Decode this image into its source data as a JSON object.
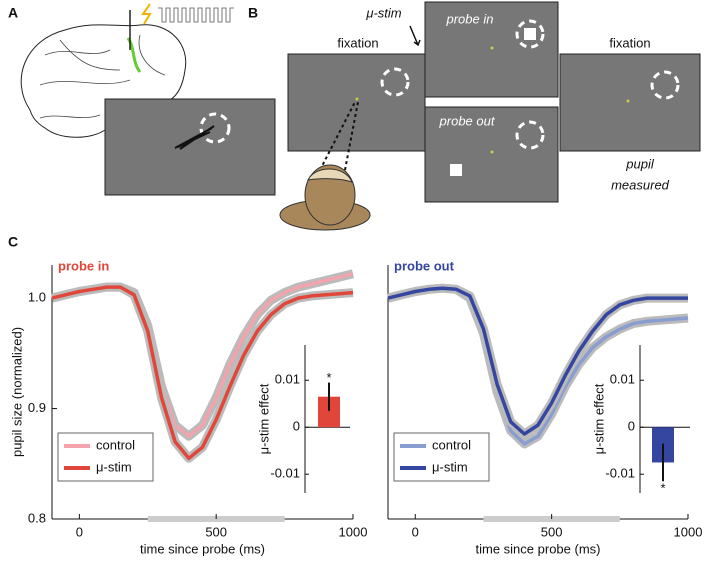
{
  "panels": {
    "a": "A",
    "b": "B",
    "c": "C"
  },
  "diagram": {
    "stim_label": "μ-stim",
    "probe_in": "probe in",
    "probe_out": "probe out",
    "fixation_left": "fixation",
    "fixation_right": "fixation",
    "pupil_measured": [
      "pupil",
      "measured"
    ]
  },
  "chart_data": [
    {
      "type": "line",
      "title": "probe in",
      "xlabel": "time since probe (ms)",
      "ylabel": "pupil size (normalized)",
      "x": [
        -100,
        -50,
        0,
        50,
        100,
        150,
        200,
        250,
        300,
        350,
        400,
        450,
        500,
        550,
        600,
        650,
        700,
        750,
        800,
        850,
        900,
        950,
        1000
      ],
      "series": [
        {
          "name": "control",
          "color": "#f2a3ab",
          "values": [
            1.0,
            1.003,
            1.006,
            1.008,
            1.01,
            1.01,
            1.005,
            0.975,
            0.92,
            0.885,
            0.875,
            0.885,
            0.91,
            0.94,
            0.965,
            0.985,
            0.998,
            1.005,
            1.01,
            1.013,
            1.016,
            1.019,
            1.022
          ]
        },
        {
          "name": "μ-stim",
          "color": "#e0473a",
          "values": [
            1.0,
            1.003,
            1.006,
            1.008,
            1.01,
            1.01,
            1.003,
            0.97,
            0.91,
            0.87,
            0.855,
            0.865,
            0.89,
            0.92,
            0.948,
            0.97,
            0.985,
            0.995,
            1.0,
            1.002,
            1.003,
            1.004,
            1.005
          ]
        }
      ],
      "xlim": [
        -100,
        1000
      ],
      "xticks": [
        0,
        500,
        1000
      ],
      "ylim": [
        0.8,
        1.03
      ],
      "yticks": [
        0.8,
        0.9,
        {
          "value": 1,
          "label": "1.0"
        }
      ],
      "shaded_window": [
        250,
        750
      ],
      "legend": "lower left"
    },
    {
      "type": "line",
      "title": "probe out",
      "xlabel": "time since probe (ms)",
      "x": [
        -100,
        -50,
        0,
        50,
        100,
        150,
        200,
        250,
        300,
        350,
        400,
        450,
        500,
        550,
        600,
        650,
        700,
        750,
        800,
        850,
        900,
        950,
        1000
      ],
      "series": [
        {
          "name": "control",
          "color": "#8a9dd0",
          "values": [
            1.0,
            1.003,
            1.006,
            1.008,
            1.009,
            1.008,
            1.0,
            0.968,
            0.915,
            0.88,
            0.868,
            0.875,
            0.895,
            0.92,
            0.94,
            0.955,
            0.965,
            0.972,
            0.977,
            0.979,
            0.98,
            0.981,
            0.982
          ]
        },
        {
          "name": "μ-stim",
          "color": "#3446a0",
          "values": [
            1.0,
            1.003,
            1.006,
            1.008,
            1.009,
            1.008,
            1.002,
            0.972,
            0.922,
            0.888,
            0.877,
            0.885,
            0.905,
            0.93,
            0.952,
            0.97,
            0.985,
            0.994,
            0.998,
            1.0,
            1.0,
            1.0,
            1.0
          ]
        }
      ],
      "xlim": [
        -100,
        1000
      ],
      "xticks": [
        0,
        500,
        1000
      ],
      "ylim": [
        0.8,
        1.03
      ],
      "shaded_window": [
        250,
        750
      ],
      "legend": "lower left"
    },
    {
      "type": "bar",
      "ylabel": "μ-stim effect",
      "categories": [
        null
      ],
      "values": [
        0.0065
      ],
      "errors": [
        0.003
      ],
      "annotation": "*",
      "color": "#e0473a",
      "ylim": [
        -0.014,
        0.0175
      ],
      "yticks": [
        -0.01,
        0,
        0.01
      ]
    },
    {
      "type": "bar",
      "ylabel": "μ-stim effect",
      "categories": [
        null
      ],
      "values": [
        -0.0075
      ],
      "errors": [
        0.004
      ],
      "annotation": "*",
      "color": "#3446a0",
      "ylim": [
        -0.014,
        0.0175
      ],
      "yticks": [
        -0.01,
        0,
        0.01
      ]
    }
  ]
}
